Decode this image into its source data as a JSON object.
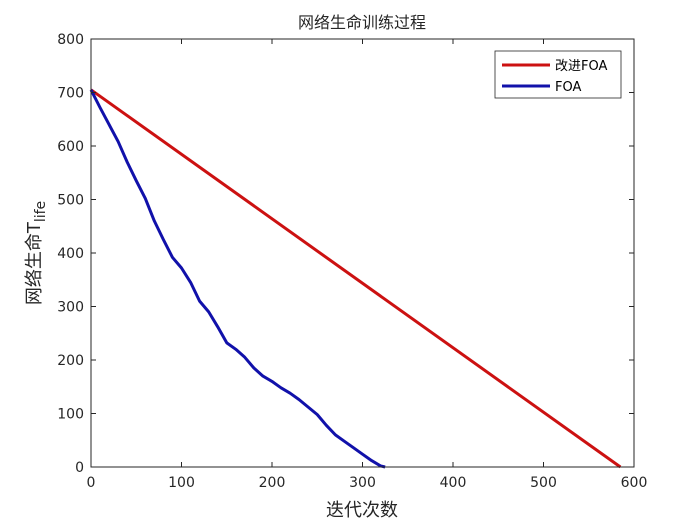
{
  "chart_data": {
    "type": "line",
    "title": "网络生命训练过程",
    "xlabel": "迭代次数",
    "ylabel_main": "网络生命T",
    "ylabel_sub": "life",
    "xlim": [
      0,
      600
    ],
    "ylim": [
      0,
      800
    ],
    "xticks": [
      0,
      100,
      200,
      300,
      400,
      500,
      600
    ],
    "yticks": [
      0,
      100,
      200,
      300,
      400,
      500,
      600,
      700,
      800
    ],
    "grid": false,
    "legend_position": "top-right",
    "series": [
      {
        "name": "改进FOA",
        "color": "#cc1111",
        "x": [
          0,
          585
        ],
        "y": [
          705,
          0
        ]
      },
      {
        "name": "FOA",
        "color": "#1111aa",
        "x": [
          0,
          10,
          20,
          30,
          40,
          50,
          60,
          70,
          80,
          90,
          100,
          110,
          120,
          130,
          140,
          150,
          160,
          170,
          180,
          190,
          200,
          210,
          220,
          230,
          240,
          250,
          260,
          270,
          280,
          290,
          300,
          310,
          320,
          325
        ],
        "y": [
          705,
          672,
          640,
          608,
          570,
          535,
          502,
          460,
          425,
          392,
          372,
          345,
          310,
          290,
          262,
          232,
          220,
          205,
          185,
          170,
          160,
          148,
          138,
          126,
          112,
          98,
          78,
          60,
          48,
          36,
          24,
          12,
          2,
          0
        ]
      }
    ]
  }
}
